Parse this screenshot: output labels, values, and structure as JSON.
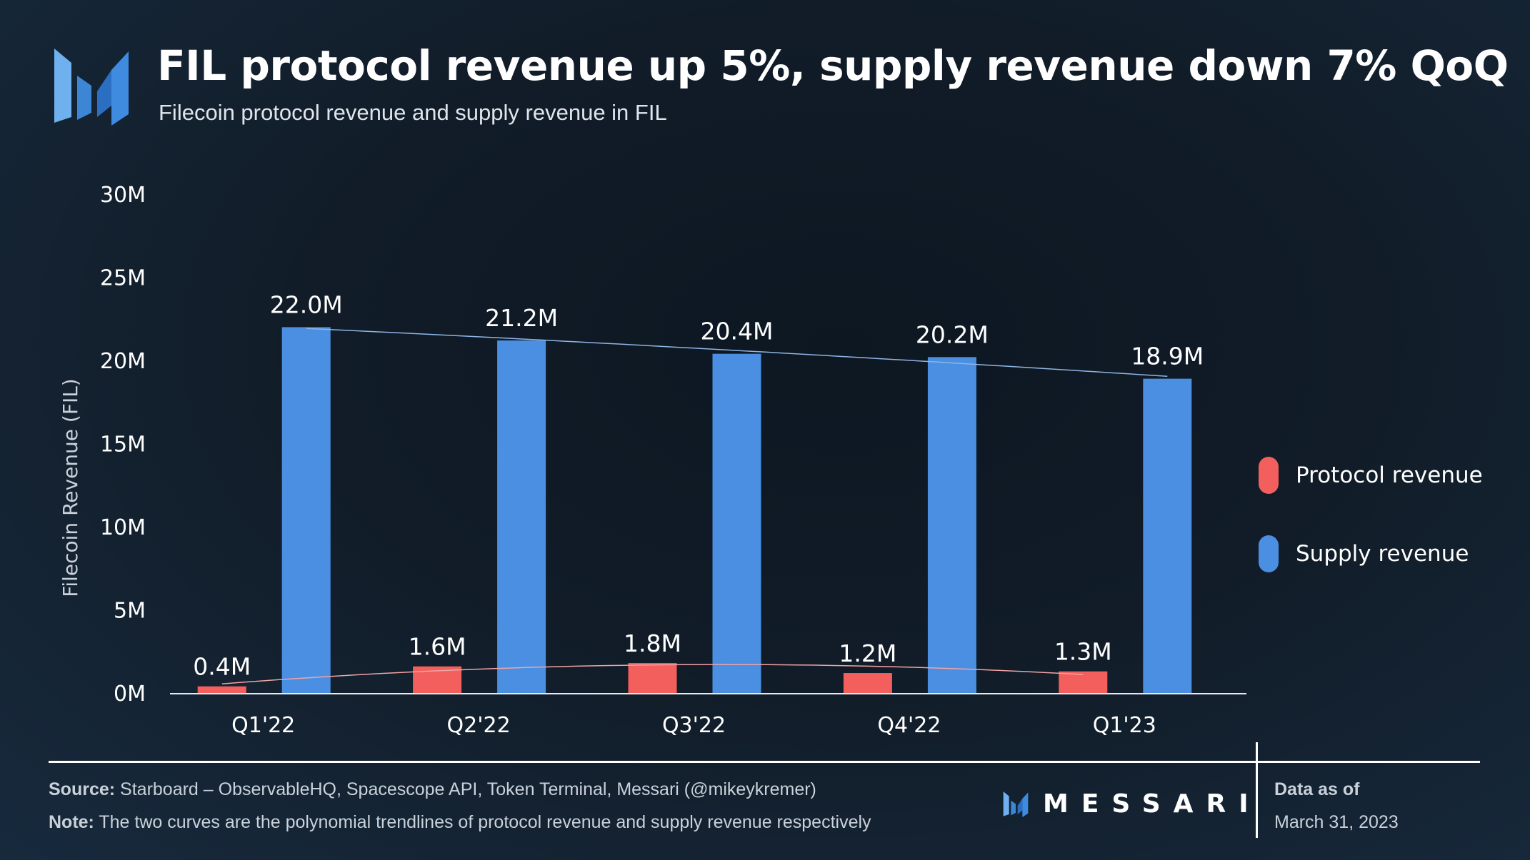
{
  "header": {
    "title": "FIL protocol revenue up 5%, supply revenue down 7% QoQ",
    "subtitle": "Filecoin protocol revenue and supply revenue in FIL",
    "logo_icon": "messari-logo-icon"
  },
  "colors": {
    "protocol": "#f25f5c",
    "supply": "#4a8fe2",
    "supply_trend": "#8fb5e3",
    "protocol_trend": "#f0a4a6"
  },
  "chart_data": {
    "type": "bar",
    "title": "FIL protocol revenue up 5%, supply revenue down 7% QoQ",
    "subtitle": "Filecoin protocol revenue and supply revenue in FIL",
    "ylabel": "Filecoin Revenue (FIL)",
    "xlabel": "",
    "categories": [
      "Q1'22",
      "Q2'22",
      "Q3'22",
      "Q4'22",
      "Q1'23"
    ],
    "series": [
      {
        "name": "Protocol revenue",
        "values": [
          0.4,
          1.6,
          1.8,
          1.2,
          1.3
        ],
        "labels": [
          "0.4M",
          "1.6M",
          "1.8M",
          "1.2M",
          "1.3M"
        ]
      },
      {
        "name": "Supply revenue",
        "values": [
          22.0,
          21.2,
          20.4,
          20.2,
          18.9
        ],
        "labels": [
          "22.0M",
          "21.2M",
          "20.4M",
          "20.2M",
          "18.9M"
        ]
      }
    ],
    "ylim": [
      0,
      30
    ],
    "yticks": [
      0,
      5,
      10,
      15,
      20,
      25,
      30
    ],
    "ytick_labels": [
      "0M",
      "5M",
      "10M",
      "15M",
      "20M",
      "25M",
      "30M"
    ],
    "trendlines": "polynomial",
    "grid": false,
    "legend_position": "right"
  },
  "legend": {
    "items": [
      {
        "label": "Protocol revenue"
      },
      {
        "label": "Supply revenue"
      }
    ]
  },
  "footer": {
    "source_label": "Source:",
    "source_text": " Starboard – ObservableHQ, Spacescope API, Token Terminal, Messari (@mikeykremer)",
    "note_label": "Note:",
    "note_text": " The two curves are the polynomial trendlines of protocol revenue and supply revenue respectively",
    "brand": "MESSARI",
    "data_as_of_label": "Data as of",
    "date": "March 31, 2023"
  }
}
